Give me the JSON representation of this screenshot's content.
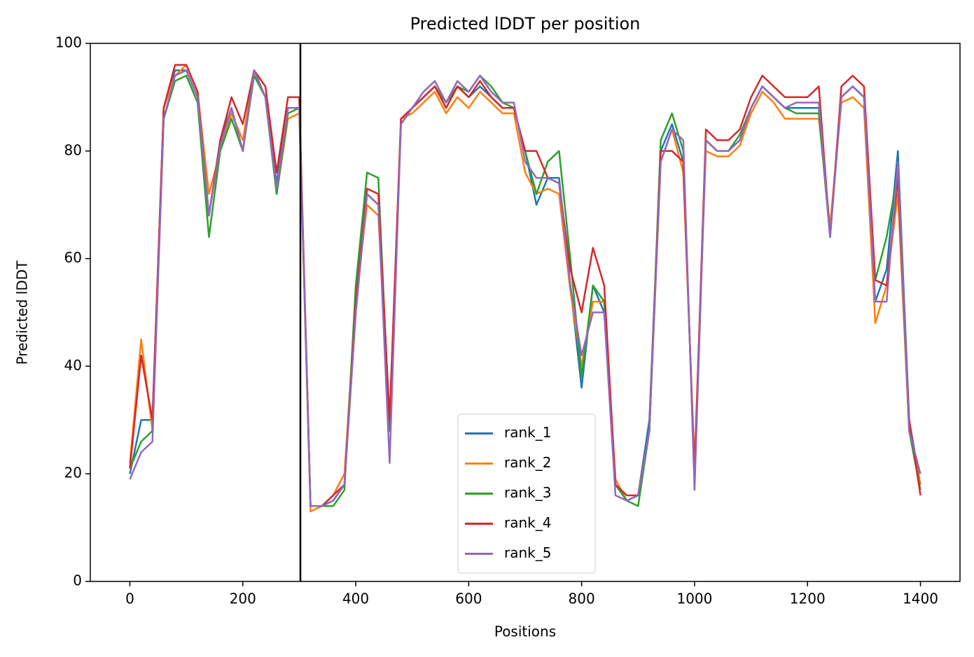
{
  "chart_data": {
    "type": "line",
    "title": "Predicted lDDT per position",
    "x_label": "Positions",
    "y_label": "Predicted lDDT",
    "x": [
      0,
      20,
      40,
      60,
      80,
      100,
      120,
      140,
      160,
      180,
      200,
      220,
      240,
      260,
      280,
      300,
      320,
      340,
      360,
      380,
      400,
      420,
      440,
      460,
      480,
      500,
      520,
      540,
      560,
      580,
      600,
      620,
      640,
      660,
      680,
      700,
      720,
      740,
      760,
      780,
      800,
      820,
      840,
      860,
      880,
      900,
      920,
      940,
      960,
      980,
      1000,
      1020,
      1040,
      1060,
      1080,
      1100,
      1120,
      1140,
      1160,
      1180,
      1200,
      1220,
      1240,
      1260,
      1280,
      1300,
      1320,
      1340,
      1360,
      1380,
      1400
    ],
    "series": [
      {
        "name": "rank_1",
        "color": "#1f77b4",
        "values": [
          20,
          30,
          30,
          88,
          95,
          95,
          90,
          68,
          82,
          88,
          80,
          95,
          90,
          74,
          88,
          88,
          14,
          14,
          15,
          18,
          50,
          72,
          70,
          30,
          85,
          88,
          90,
          92,
          88,
          92,
          90,
          92,
          90,
          88,
          88,
          80,
          70,
          75,
          75,
          55,
          36,
          55,
          50,
          18,
          15,
          16,
          30,
          80,
          85,
          78,
          20,
          82,
          80,
          80,
          82,
          88,
          92,
          90,
          88,
          88,
          88,
          88,
          65,
          90,
          92,
          90,
          52,
          58,
          80,
          30,
          18
        ]
      },
      {
        "name": "rank_2",
        "color": "#ff7f0e",
        "values": [
          22,
          45,
          28,
          88,
          94,
          96,
          91,
          72,
          80,
          87,
          82,
          95,
          90,
          72,
          86,
          87,
          13,
          14,
          16,
          20,
          52,
          70,
          68,
          28,
          86,
          87,
          89,
          91,
          87,
          90,
          88,
          91,
          89,
          87,
          87,
          76,
          72,
          73,
          72,
          54,
          40,
          52,
          52,
          19,
          15,
          16,
          28,
          78,
          84,
          76,
          22,
          80,
          79,
          79,
          81,
          87,
          91,
          89,
          86,
          86,
          86,
          86,
          66,
          89,
          90,
          88,
          48,
          55,
          72,
          28,
          18
        ]
      },
      {
        "name": "rank_3",
        "color": "#2ca02c",
        "values": [
          21,
          26,
          28,
          86,
          93,
          94,
          89,
          64,
          80,
          86,
          80,
          94,
          90,
          72,
          87,
          88,
          14,
          14,
          14,
          17,
          55,
          76,
          75,
          28,
          85,
          88,
          90,
          92,
          89,
          92,
          91,
          94,
          92,
          89,
          88,
          80,
          72,
          78,
          80,
          60,
          38,
          55,
          52,
          18,
          15,
          14,
          28,
          82,
          87,
          80,
          19,
          82,
          80,
          80,
          83,
          88,
          92,
          90,
          88,
          87,
          87,
          87,
          64,
          90,
          92,
          90,
          56,
          64,
          76,
          28,
          17
        ]
      },
      {
        "name": "rank_4",
        "color": "#d62728",
        "values": [
          21,
          42,
          30,
          88,
          96,
          96,
          91,
          68,
          82,
          90,
          85,
          95,
          92,
          76,
          90,
          90,
          14,
          14,
          16,
          18,
          52,
          73,
          72,
          30,
          86,
          88,
          90,
          92,
          88,
          92,
          90,
          93,
          90,
          88,
          88,
          80,
          80,
          75,
          74,
          58,
          50,
          62,
          55,
          18,
          16,
          16,
          28,
          80,
          80,
          78,
          20,
          84,
          82,
          82,
          84,
          90,
          94,
          92,
          90,
          90,
          90,
          92,
          64,
          92,
          94,
          92,
          56,
          55,
          75,
          30,
          16
        ]
      },
      {
        "name": "rank_5",
        "color": "#9467bd",
        "values": [
          19,
          24,
          26,
          86,
          94,
          95,
          90,
          68,
          81,
          88,
          80,
          95,
          90,
          73,
          88,
          88,
          14,
          14,
          15,
          18,
          50,
          72,
          70,
          22,
          85,
          88,
          91,
          93,
          89,
          93,
          91,
          94,
          91,
          89,
          89,
          78,
          75,
          75,
          74,
          55,
          42,
          50,
          50,
          16,
          15,
          16,
          28,
          78,
          84,
          82,
          17,
          82,
          80,
          80,
          82,
          88,
          92,
          90,
          88,
          89,
          89,
          89,
          64,
          90,
          92,
          90,
          52,
          52,
          78,
          28,
          20
        ]
      }
    ],
    "vlines": [
      302
    ],
    "vline_color": "#000000",
    "xlim": [
      -70,
      1470
    ],
    "xticks": [
      0,
      200,
      400,
      600,
      800,
      1000,
      1200,
      1400
    ],
    "ylim": [
      0,
      100
    ],
    "yticks": [
      0,
      20,
      40,
      60,
      80,
      100
    ],
    "grid": false,
    "legend": "lower center"
  }
}
